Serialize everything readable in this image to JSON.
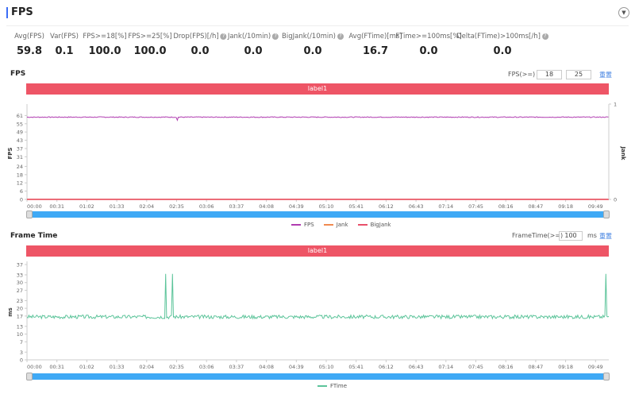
{
  "header": {
    "title": "FPS",
    "toggle_icon": "chevron-down-icon"
  },
  "stats": [
    {
      "label": "Avg(FPS)",
      "value": "59.8",
      "help": false
    },
    {
      "label": "Var(FPS)",
      "value": "0.1",
      "help": false
    },
    {
      "label": "FPS>=18[%]",
      "value": "100.0",
      "help": false
    },
    {
      "label": "FPS>=25[%]",
      "value": "100.0",
      "help": false
    },
    {
      "label": "Drop(FPS)[/h]",
      "value": "0.0",
      "help": true
    },
    {
      "label": "Jank(/10min)",
      "value": "0.0",
      "help": true
    },
    {
      "label": "BigJank(/10min)",
      "value": "0.0",
      "help": true
    },
    {
      "label": "Avg(FTime)[ms]",
      "value": "16.7",
      "help": false
    },
    {
      "label": "FTime>=100ms[%]",
      "value": "0.0",
      "help": false
    },
    {
      "label": "Delta(FTime)>100ms[/h]",
      "value": "0.0",
      "help": true
    }
  ],
  "fps_section": {
    "title": "FPS",
    "filter_label": "FPS(>=)",
    "input1": "18",
    "input2": "25",
    "reset": "重置",
    "label_bar": "label1"
  },
  "ft_section": {
    "title": "Frame Time",
    "filter_label": "FrameTime(>=)",
    "input": "100",
    "unit": "ms",
    "reset": "重置",
    "label_bar": "label1"
  },
  "colors": {
    "fps": "#b03cb0",
    "jank": "#f08a50",
    "bigjank": "#e8506a",
    "ftime": "#5cc49a",
    "slider": "#3fa9f5",
    "label": "#ee5566"
  },
  "chart_data": [
    {
      "type": "line",
      "ylabel": "FPS",
      "y2label": "Jank",
      "yticks": [
        0,
        6,
        12,
        18,
        24,
        31,
        37,
        43,
        49,
        55,
        61
      ],
      "ylim": [
        0,
        67
      ],
      "y2ticks": [
        0,
        1
      ],
      "xticks": [
        "00:00",
        "00:31",
        "01:02",
        "01:33",
        "02:04",
        "02:35",
        "03:06",
        "03:37",
        "04:08",
        "04:39",
        "05:10",
        "05:41",
        "06:12",
        "06:43",
        "07:14",
        "07:45",
        "08:16",
        "08:47",
        "09:18",
        "09:49"
      ],
      "x_range_seconds": [
        0,
        600
      ],
      "legend": [
        "FPS",
        "Jank",
        "BigJank"
      ],
      "legend_position": "bottom",
      "series": [
        {
          "name": "FPS",
          "baseline": 59.8,
          "dips": [
            [
              155,
              57.5
            ]
          ]
        },
        {
          "name": "Jank",
          "baseline": 0
        },
        {
          "name": "BigJank",
          "baseline": 0
        }
      ]
    },
    {
      "type": "line",
      "ylabel": "ms",
      "yticks": [
        0,
        3,
        7,
        10,
        13,
        17,
        20,
        23,
        27,
        30,
        33,
        37
      ],
      "ylim": [
        0,
        37
      ],
      "xticks": [
        "00:00",
        "00:31",
        "01:02",
        "01:33",
        "02:04",
        "02:35",
        "03:06",
        "03:37",
        "04:08",
        "04:39",
        "05:10",
        "05:41",
        "06:12",
        "06:43",
        "07:14",
        "07:45",
        "08:16",
        "08:47",
        "09:18",
        "09:49"
      ],
      "x_range_seconds": [
        0,
        600
      ],
      "legend": [
        "FTime"
      ],
      "legend_position": "bottom",
      "series": [
        {
          "name": "FTime",
          "baseline": 16.7,
          "spikes": [
            [
              143,
              33.4
            ],
            [
              150,
              33.4
            ],
            [
              597,
              33.4
            ]
          ]
        }
      ]
    }
  ]
}
